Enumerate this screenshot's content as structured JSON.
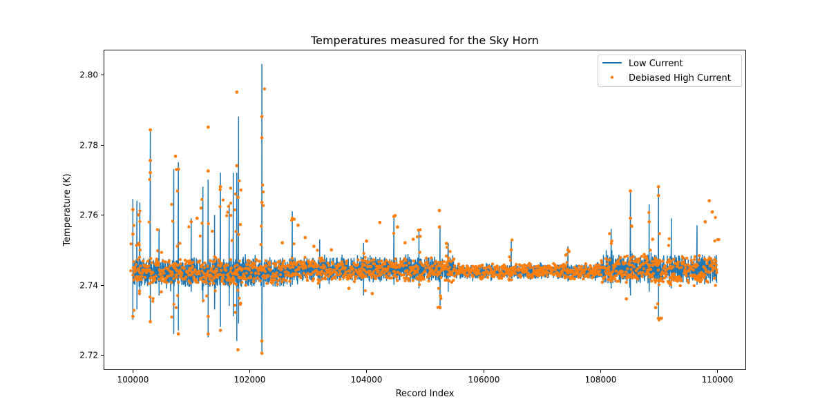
{
  "chart_data": {
    "type": "line",
    "title": "Temperatures measured for the Sky Horn",
    "xlabel": "Record Index",
    "ylabel": "Temperature (K)",
    "xlim": [
      99500,
      110500
    ],
    "ylim": [
      2.7157,
      2.8071
    ],
    "xticks": [
      100000,
      102000,
      104000,
      106000,
      108000,
      110000
    ],
    "xtick_labels": [
      "100000",
      "102000",
      "104000",
      "106000",
      "108000",
      "110000"
    ],
    "yticks": [
      2.72,
      2.74,
      2.76,
      2.78,
      2.8
    ],
    "ytick_labels": [
      "2.72",
      "2.74",
      "2.76",
      "2.78",
      "2.80"
    ],
    "grid": false,
    "legend": {
      "placement": "top-right",
      "entries": [
        "Low Current",
        "Debiased High Current"
      ]
    },
    "colors": {
      "low_current": "#1f77b4",
      "high_current": "#ff7f0e"
    },
    "series": [
      {
        "name": "Low Current",
        "kind": "line",
        "baseline_segments_x_start_x_end_low_high": [
          [
            100000,
            102700,
            2.738,
            2.749
          ],
          [
            102700,
            105500,
            2.74,
            2.749
          ],
          [
            105500,
            108000,
            2.741,
            2.7465
          ],
          [
            108000,
            110000,
            2.739,
            2.75
          ]
        ],
        "spikes_x_low_high": [
          [
            100000,
            2.73,
            2.7645
          ],
          [
            100070,
            2.733,
            2.764
          ],
          [
            100120,
            2.737,
            2.7635
          ],
          [
            100300,
            2.729,
            2.784
          ],
          [
            100450,
            2.737,
            2.756
          ],
          [
            100700,
            2.726,
            2.773
          ],
          [
            100780,
            2.727,
            2.775
          ],
          [
            101000,
            2.738,
            2.759
          ],
          [
            101200,
            2.735,
            2.768
          ],
          [
            101290,
            2.725,
            2.77
          ],
          [
            101400,
            2.733,
            2.76
          ],
          [
            101500,
            2.728,
            2.772
          ],
          [
            101650,
            2.734,
            2.763
          ],
          [
            101720,
            2.731,
            2.772
          ],
          [
            101780,
            2.724,
            2.772
          ],
          [
            101810,
            2.729,
            2.788
          ],
          [
            102210,
            2.72,
            2.803
          ],
          [
            102730,
            2.74,
            2.761
          ],
          [
            103200,
            2.739,
            2.753
          ],
          [
            103950,
            2.737,
            2.752
          ],
          [
            104470,
            2.74,
            2.76
          ],
          [
            104900,
            2.739,
            2.756
          ],
          [
            105260,
            2.733,
            2.757
          ],
          [
            105400,
            2.738,
            2.752
          ],
          [
            106480,
            2.741,
            2.753
          ],
          [
            107450,
            2.741,
            2.751
          ],
          [
            108190,
            2.739,
            2.756
          ],
          [
            108520,
            2.737,
            2.767
          ],
          [
            108840,
            2.738,
            2.763
          ],
          [
            109000,
            2.73,
            2.768
          ],
          [
            109220,
            2.739,
            2.759
          ],
          [
            109660,
            2.74,
            2.757
          ],
          [
            110000,
            2.739,
            2.761
          ]
        ]
      },
      {
        "name": "Debiased High Current",
        "kind": "scatter",
        "band_segments_x_start_x_end_low_high": [
          [
            100000,
            102700,
            2.7395,
            2.748
          ],
          [
            102700,
            105500,
            2.7405,
            2.748
          ],
          [
            105500,
            108000,
            2.7415,
            2.7465
          ],
          [
            108000,
            110000,
            2.7395,
            2.749
          ]
        ],
        "outliers_x_y": [
          [
            100000,
            2.7615
          ],
          [
            100000,
            2.7545
          ],
          [
            100000,
            2.731
          ],
          [
            100100,
            2.76
          ],
          [
            100300,
            2.7842
          ],
          [
            100300,
            2.7755
          ],
          [
            100300,
            2.772
          ],
          [
            100300,
            2.7295
          ],
          [
            100730,
            2.7767
          ],
          [
            100780,
            2.773
          ],
          [
            100780,
            2.726
          ],
          [
            101000,
            2.758
          ],
          [
            101100,
            2.759
          ],
          [
            101290,
            2.785
          ],
          [
            101290,
            2.7725
          ],
          [
            101290,
            2.731
          ],
          [
            101290,
            2.726
          ],
          [
            101500,
            2.768
          ],
          [
            101500,
            2.727
          ],
          [
            101780,
            2.795
          ],
          [
            101780,
            2.774
          ],
          [
            101800,
            2.7215
          ],
          [
            101800,
            2.765
          ],
          [
            102210,
            2.788
          ],
          [
            102210,
            2.782
          ],
          [
            102210,
            2.7635
          ],
          [
            102210,
            2.724
          ],
          [
            102210,
            2.7205
          ],
          [
            102560,
            2.752
          ],
          [
            102730,
            2.759
          ],
          [
            102830,
            2.757
          ],
          [
            102950,
            2.7535
          ],
          [
            103100,
            2.751
          ],
          [
            103400,
            2.75
          ],
          [
            103700,
            2.739
          ],
          [
            104000,
            2.7525
          ],
          [
            104100,
            2.7375
          ],
          [
            104230,
            2.7578
          ],
          [
            104470,
            2.7595
          ],
          [
            104530,
            2.7565
          ],
          [
            104660,
            2.752
          ],
          [
            104800,
            2.753
          ],
          [
            105250,
            2.7612
          ],
          [
            105250,
            2.7565
          ],
          [
            105260,
            2.7335
          ],
          [
            105370,
            2.7518
          ],
          [
            106480,
            2.75
          ],
          [
            107450,
            2.75
          ],
          [
            108200,
            2.7525
          ],
          [
            108450,
            2.736
          ],
          [
            108520,
            2.7668
          ],
          [
            108520,
            2.759
          ],
          [
            108840,
            2.758
          ],
          [
            108900,
            2.753
          ],
          [
            108950,
            2.7335
          ],
          [
            109000,
            2.768
          ],
          [
            109000,
            2.7655
          ],
          [
            109000,
            2.7305
          ],
          [
            109050,
            2.7305
          ],
          [
            109800,
            2.758
          ],
          [
            109870,
            2.764
          ],
          [
            109920,
            2.7608
          ]
        ]
      }
    ]
  }
}
